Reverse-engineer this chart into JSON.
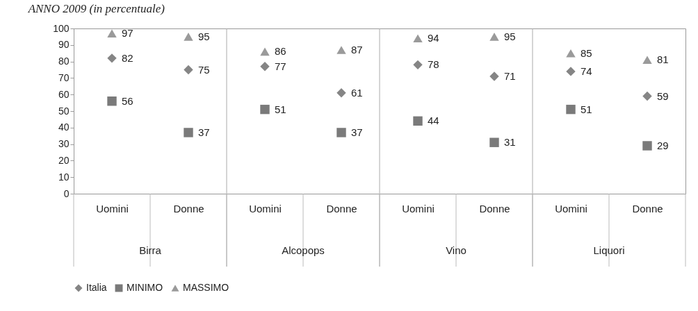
{
  "chart_data": {
    "type": "scatter",
    "title": "ANNO 2009 (in percentuale)",
    "categories": [
      "Uomini",
      "Donne",
      "Uomini",
      "Donne",
      "Uomini",
      "Donne",
      "Uomini",
      "Donne"
    ],
    "annotations": [
      "Birra",
      "Alcopops",
      "Vino",
      "Liquori"
    ],
    "series": [
      {
        "name": "Italia",
        "color": "#858585",
        "marker": "diamond",
        "values": [
          82,
          75,
          77,
          61,
          78,
          71,
          74,
          59
        ]
      },
      {
        "name": "MINIMO",
        "color": "#7a7a7a",
        "marker": "square",
        "values": [
          56,
          37,
          51,
          37,
          44,
          31,
          51,
          29
        ]
      },
      {
        "name": "MASSIMO",
        "color": "#9a9a9a",
        "marker": "triangle",
        "values": [
          97,
          95,
          86,
          87,
          94,
          95,
          85,
          81
        ]
      }
    ],
    "ylim": [
      0,
      100
    ],
    "yticks": [
      0,
      10,
      20,
      30,
      40,
      50,
      60,
      70,
      80,
      90,
      100
    ],
    "data_labels": true,
    "grid": false,
    "legend": "bottom"
  }
}
